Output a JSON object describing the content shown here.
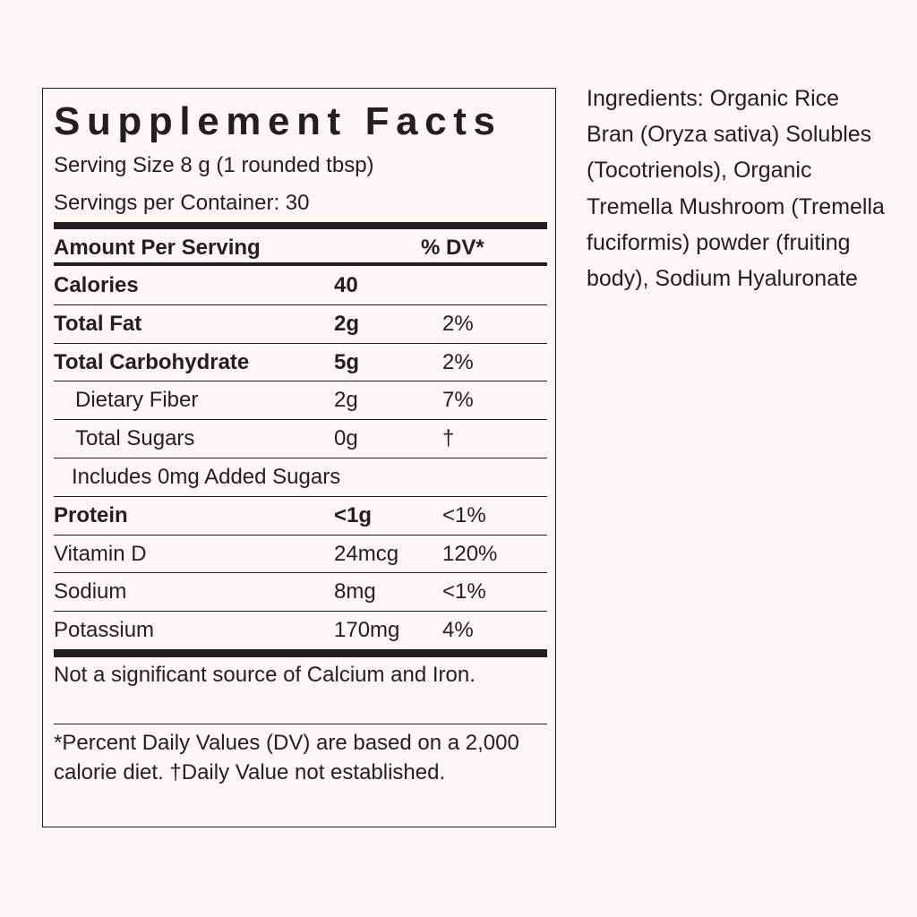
{
  "facts": {
    "title": "Supplement Facts",
    "serving_size": "Serving Size 8 g (1 rounded tbsp)",
    "servings_per_container": "Servings per Container: 30",
    "amount_header": "Amount Per Serving",
    "dv_header": "% DV*",
    "rows": [
      {
        "name": "Calories",
        "amount": "40",
        "dv": "",
        "bold": true
      },
      {
        "name": "Total Fat",
        "amount": "2g",
        "dv": "2%",
        "bold": true
      },
      {
        "name": "Total Carbohydrate",
        "amount": "5g",
        "dv": "2%",
        "bold": true
      },
      {
        "name": "Dietary Fiber",
        "amount": "2g",
        "dv": "7%",
        "indent": 1
      },
      {
        "name": "Total Sugars",
        "amount": "0g",
        "dv": "†",
        "indent": 1
      },
      {
        "name": "Includes 0mg Added Sugars",
        "amount": "",
        "dv": "",
        "indent": 2
      },
      {
        "name": "Protein",
        "amount": "<1g",
        "dv": "<1%",
        "bold": true
      },
      {
        "name": "Vitamin D",
        "amount": "24mcg",
        "dv": "120%"
      },
      {
        "name": "Sodium",
        "amount": "8mg",
        "dv": "<1%"
      },
      {
        "name": "Potassium",
        "amount": "170mg",
        "dv": "4%"
      }
    ],
    "note": "Not a significant source of Calcium and Iron.",
    "footnote": "*Percent Daily Values (DV) are based on a 2,000 calorie diet.  †Daily Value not established."
  },
  "ingredients": "Ingredients: Organic Rice Bran (Oryza sativa) Solubles (Tocotrienols), Organic Tremella Mushroom (Tremella fuciformis) powder (fruiting body), Sodium Hyaluronate"
}
